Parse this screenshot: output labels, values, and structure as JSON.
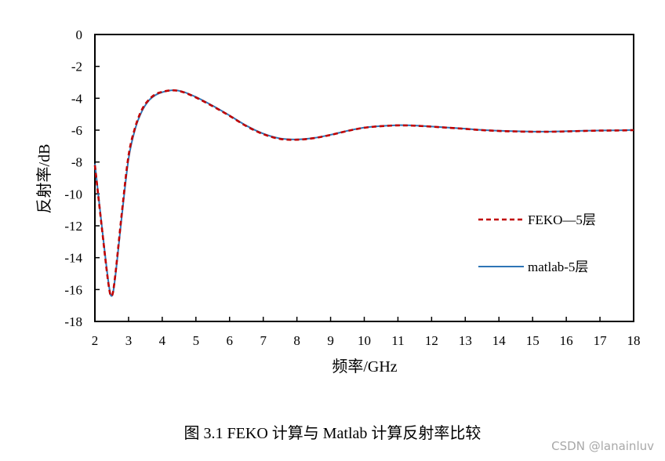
{
  "chart_data": {
    "type": "line",
    "title": "",
    "xlabel": "频率/GHz",
    "ylabel": "反射率/dB",
    "xlim": [
      2,
      18
    ],
    "ylim": [
      -18,
      0
    ],
    "xticks": [
      2,
      3,
      4,
      5,
      6,
      7,
      8,
      9,
      10,
      11,
      12,
      13,
      14,
      15,
      16,
      17,
      18
    ],
    "yticks": [
      0,
      -2,
      -4,
      -6,
      -8,
      -10,
      -12,
      -14,
      -16,
      -18
    ],
    "grid": false,
    "legend_position": "right-center",
    "series": [
      {
        "name": "FEKO—5层",
        "color": "#c00000",
        "style": "dashed",
        "x": [
          2.0,
          2.2,
          2.4,
          2.5,
          2.6,
          2.8,
          3.0,
          3.2,
          3.4,
          3.6,
          3.8,
          4.0,
          4.3,
          4.6,
          5.0,
          5.5,
          6.0,
          6.5,
          7.0,
          7.5,
          8.0,
          8.5,
          9.0,
          9.5,
          10.0,
          10.5,
          11.0,
          11.5,
          12.0,
          12.5,
          13.0,
          13.5,
          14.0,
          14.5,
          15.0,
          15.5,
          16.0,
          16.5,
          17.0,
          17.5,
          18.0
        ],
        "y": [
          -8.2,
          -12.0,
          -15.6,
          -16.4,
          -15.2,
          -11.2,
          -7.6,
          -5.8,
          -4.7,
          -4.1,
          -3.75,
          -3.6,
          -3.5,
          -3.6,
          -3.95,
          -4.5,
          -5.1,
          -5.75,
          -6.25,
          -6.55,
          -6.6,
          -6.5,
          -6.3,
          -6.05,
          -5.85,
          -5.75,
          -5.7,
          -5.72,
          -5.78,
          -5.85,
          -5.92,
          -6.0,
          -6.05,
          -6.08,
          -6.1,
          -6.1,
          -6.08,
          -6.05,
          -6.03,
          -6.02,
          -6.0
        ]
      },
      {
        "name": "matlab-5层",
        "color": "#2e75b6",
        "style": "solid",
        "x": [
          2.0,
          2.2,
          2.4,
          2.5,
          2.6,
          2.8,
          3.0,
          3.2,
          3.4,
          3.6,
          3.8,
          4.0,
          4.3,
          4.6,
          5.0,
          5.5,
          6.0,
          6.5,
          7.0,
          7.5,
          8.0,
          8.5,
          9.0,
          9.5,
          10.0,
          10.5,
          11.0,
          11.5,
          12.0,
          12.5,
          13.0,
          13.5,
          14.0,
          14.5,
          15.0,
          15.5,
          16.0,
          16.5,
          17.0,
          17.5,
          18.0
        ],
        "y": [
          -8.1,
          -11.9,
          -15.5,
          -16.4,
          -15.3,
          -11.4,
          -7.8,
          -5.9,
          -4.8,
          -4.15,
          -3.8,
          -3.62,
          -3.5,
          -3.58,
          -3.92,
          -4.47,
          -5.08,
          -5.72,
          -6.22,
          -6.52,
          -6.58,
          -6.49,
          -6.29,
          -6.04,
          -5.84,
          -5.74,
          -5.69,
          -5.71,
          -5.77,
          -5.84,
          -5.91,
          -5.99,
          -6.04,
          -6.07,
          -6.09,
          -6.09,
          -6.07,
          -6.04,
          -6.02,
          -6.01,
          -5.99
        ]
      }
    ]
  },
  "caption": "图 3.1 FEKO 计算与 Matlab 计算反射率比较",
  "watermark": "CSDN @lanainluv"
}
